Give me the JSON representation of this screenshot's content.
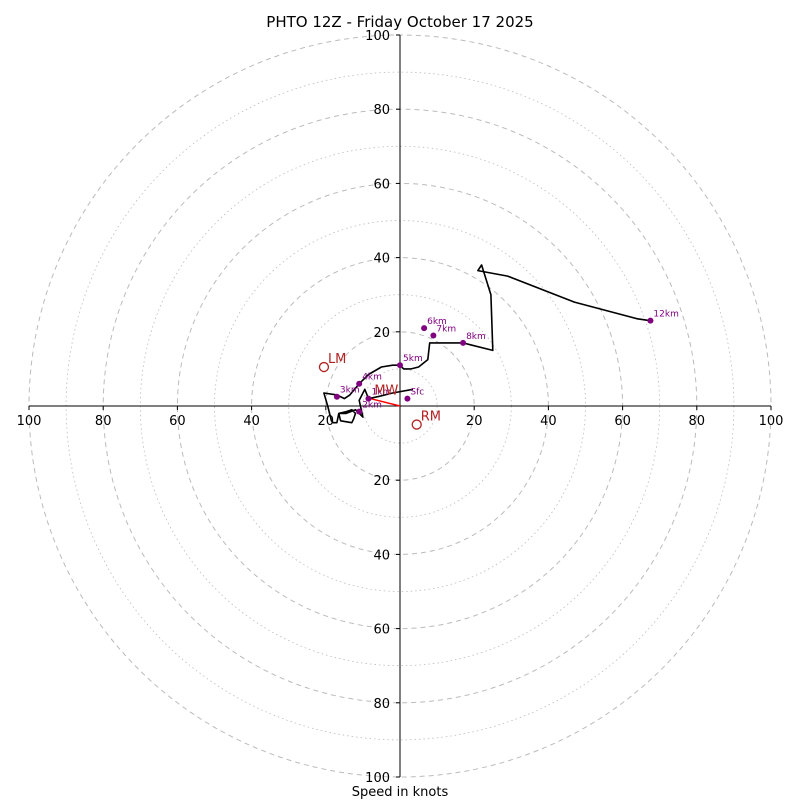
{
  "chart_data": {
    "type": "hodograph",
    "title": "PHTO 12Z - Friday October 17 2025",
    "xlabel": "Speed in knots",
    "range": [
      -100,
      100
    ],
    "rings": [
      10,
      20,
      30,
      40,
      50,
      60,
      70,
      80,
      90,
      100
    ],
    "tick_labels": {
      "x_left": [
        "100",
        "80",
        "60",
        "40",
        "20"
      ],
      "x_right": [
        "20",
        "40",
        "60",
        "80",
        "100"
      ],
      "y_top": [
        "100",
        "80",
        "60",
        "40",
        "20"
      ],
      "y_bottom": [
        "20",
        "40",
        "60",
        "80",
        "100"
      ]
    },
    "trace": [
      [
        3.5,
        4.5
      ],
      [
        -2,
        3.5
      ],
      [
        -4,
        3
      ],
      [
        -6,
        2.5
      ],
      [
        -8.5,
        2
      ],
      [
        -9.5,
        4.5
      ],
      [
        -11,
        1.5
      ],
      [
        -10,
        -3
      ],
      [
        -12,
        -1
      ],
      [
        -14.5,
        -2
      ],
      [
        -16.5,
        -2
      ],
      [
        -16,
        -4
      ],
      [
        -13,
        -4.5
      ],
      [
        -12.5,
        -3.5
      ],
      [
        -12,
        -2
      ],
      [
        -13,
        -1
      ],
      [
        -14.5,
        -1.5
      ],
      [
        -16.5,
        -2
      ],
      [
        -17,
        -4.5
      ],
      [
        -18,
        -4.5
      ],
      [
        -18.5,
        -4
      ],
      [
        -19.5,
        0
      ],
      [
        -20.5,
        3.5
      ],
      [
        -17,
        3
      ],
      [
        -15,
        2
      ],
      [
        -13.5,
        3
      ],
      [
        -11,
        6
      ],
      [
        -8.5,
        8.5
      ],
      [
        -5,
        10.5
      ],
      [
        -2,
        11
      ],
      [
        0,
        11
      ],
      [
        1,
        10
      ],
      [
        3,
        10
      ],
      [
        5,
        10.5
      ],
      [
        7.5,
        12.5
      ],
      [
        8,
        17
      ],
      [
        12,
        17
      ],
      [
        17,
        17
      ],
      [
        19,
        16.5
      ],
      [
        25,
        15
      ],
      [
        24.5,
        30
      ],
      [
        22,
        38
      ],
      [
        21,
        36.5
      ],
      [
        29,
        35
      ],
      [
        47,
        28
      ],
      [
        64,
        23.5
      ],
      [
        67.5,
        23
      ]
    ],
    "height_markers": [
      {
        "label": "Sfc",
        "u": 2,
        "v": 2
      },
      {
        "label": "1km",
        "u": -8.5,
        "v": 2
      },
      {
        "label": "2km",
        "u": -11,
        "v": -1.5
      },
      {
        "label": "3km",
        "u": -17,
        "v": 2.5
      },
      {
        "label": "4km",
        "u": -11,
        "v": 6
      },
      {
        "label": "5km",
        "u": 0,
        "v": 11
      },
      {
        "label": "6km",
        "u": 6.5,
        "v": 21
      },
      {
        "label": "7km",
        "u": 9,
        "v": 19
      },
      {
        "label": "8km",
        "u": 17,
        "v": 17
      },
      {
        "label": "12km",
        "u": 67.5,
        "v": 23
      }
    ],
    "storm_motion": [
      {
        "label": "LM",
        "u": -20.5,
        "v": 10.5
      },
      {
        "label": "RM",
        "u": 4.5,
        "v": -5
      },
      {
        "label": "MW",
        "u": -8,
        "v": 2
      }
    ],
    "colors": {
      "trace": "#000000",
      "marker": "#800080",
      "storm_motion": "#b22222",
      "mean_wind_vector": "#ff0000",
      "ring": "#bbbbbb",
      "axis": "#000000"
    }
  }
}
